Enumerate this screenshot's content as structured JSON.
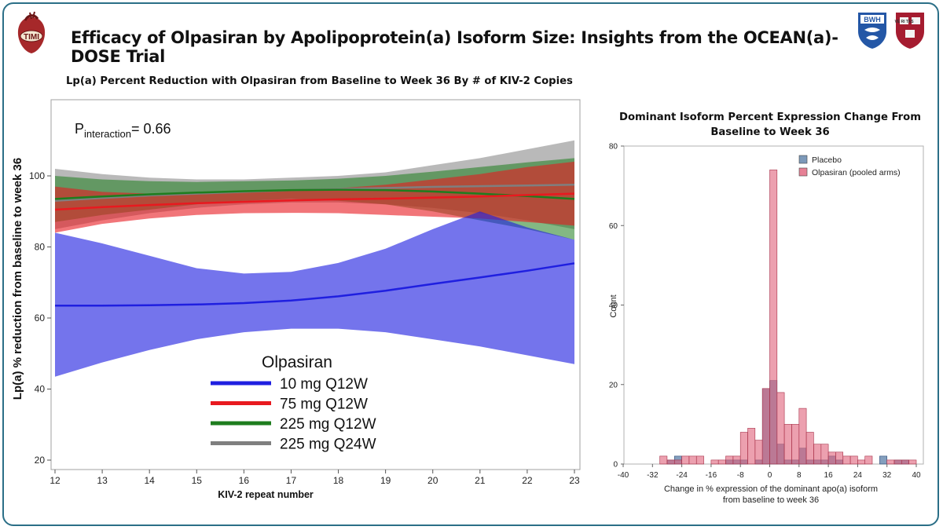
{
  "header": {
    "title": "Efficacy of Olpasiran by Apolipoprotein(a) Isoform Size: Insights from the OCEAN(a)-DOSE Trial",
    "logos": {
      "left": "TIMI",
      "right_1": "BWH",
      "right_2": "VE RI TAS"
    }
  },
  "colors": {
    "frame": "#2b6f87",
    "blue": "#1f1fe0",
    "red": "#e8191f",
    "green": "#1e7d1e",
    "gray": "#7f7f7f",
    "placebo": "#5b7fa8",
    "olpasiran": "#e0607a"
  },
  "chart_data": [
    {
      "type": "line",
      "title": "Lp(a) Percent Reduction with Olpasiran from Baseline to Week 36 By # of KIV-2 Copies",
      "xlabel": "KIV-2 repeat number",
      "ylabel": "Lp(a) % reduction from baseline to week 36",
      "xlim": [
        12,
        23
      ],
      "ylim": [
        18,
        118
      ],
      "xticks": [
        12,
        13,
        14,
        15,
        16,
        17,
        18,
        19,
        20,
        21,
        22,
        23
      ],
      "yticks": [
        20,
        40,
        60,
        80,
        100
      ],
      "annotation": {
        "prefix": "P",
        "subscript": "interaction",
        "suffix": "= 0.66"
      },
      "legend": {
        "title": "Olpasiran",
        "position": "bottom-center"
      },
      "x": [
        12,
        13,
        14,
        15,
        16,
        17,
        18,
        19,
        20,
        21,
        22,
        23
      ],
      "series": [
        {
          "name": "10 mg Q12W",
          "color": "#1f1fe0",
          "values": [
            63.5,
            63.5,
            63.6,
            63.8,
            64.2,
            64.9,
            66.1,
            67.7,
            69.6,
            71.4,
            73.3,
            75.4
          ],
          "lower": [
            43.5,
            47.5,
            51.0,
            54.0,
            56.0,
            57.0,
            57.0,
            56.0,
            54.0,
            52.0,
            49.5,
            47.0
          ],
          "upper": [
            84.0,
            81.0,
            77.5,
            74.0,
            72.5,
            73.0,
            75.5,
            79.5,
            85.0,
            90.0,
            85.5,
            82.0
          ]
        },
        {
          "name": "75 mg Q12W",
          "color": "#e8191f",
          "values": [
            90.5,
            91.2,
            91.8,
            92.3,
            92.7,
            93.1,
            93.4,
            93.6,
            93.9,
            94.2,
            94.6,
            95.0
          ],
          "lower": [
            84.0,
            86.5,
            88.0,
            89.0,
            89.5,
            89.6,
            89.5,
            89.0,
            88.5,
            88.0,
            87.0,
            86.0
          ],
          "upper": [
            97.0,
            95.5,
            95.0,
            95.0,
            95.5,
            96.0,
            96.5,
            97.5,
            99.0,
            100.5,
            102.5,
            104.0
          ]
        },
        {
          "name": "225 mg Q12W",
          "color": "#1e7d1e",
          "values": [
            93.5,
            94.2,
            94.8,
            95.3,
            95.7,
            96.0,
            96.1,
            96.0,
            95.6,
            95.0,
            94.3,
            93.5
          ],
          "lower": [
            87.0,
            89.0,
            90.5,
            92.0,
            93.0,
            93.5,
            93.0,
            92.0,
            90.0,
            87.5,
            85.0,
            82.0
          ],
          "upper": [
            100.0,
            99.0,
            98.5,
            98.3,
            98.5,
            98.7,
            99.2,
            100.0,
            101.2,
            102.5,
            103.8,
            105.0
          ]
        },
        {
          "name": "225 mg Q24W",
          "color": "#7f7f7f",
          "values": [
            93.0,
            93.8,
            94.5,
            95.0,
            95.5,
            96.0,
            96.3,
            96.6,
            96.9,
            97.1,
            97.3,
            97.5
          ],
          "lower": [
            85.0,
            87.5,
            89.5,
            91.0,
            92.0,
            92.5,
            92.5,
            92.0,
            91.0,
            89.5,
            87.5,
            85.0
          ],
          "upper": [
            102.0,
            100.5,
            99.5,
            99.0,
            99.0,
            99.5,
            100.0,
            101.0,
            103.0,
            105.0,
            107.5,
            110.0
          ]
        }
      ]
    },
    {
      "type": "bar",
      "subtype": "histogram",
      "title": "Dominant Isoform Percent Expression Change From Baseline to Week 36",
      "xlabel": "Change in % expression of the dominant apo(a) isoform from baseline to week 36",
      "ylabel": "Count",
      "xlim": [
        -40,
        41
      ],
      "ylim": [
        0,
        80
      ],
      "xticks": [
        -40,
        -32,
        -24,
        -16,
        -8,
        0,
        8,
        16,
        24,
        32,
        40
      ],
      "yticks": [
        0,
        20,
        40,
        60,
        80
      ],
      "bin_width": 2,
      "bin_starts": [
        -30,
        -28,
        -26,
        -24,
        -22,
        -20,
        -18,
        -16,
        -14,
        -12,
        -10,
        -8,
        -6,
        -4,
        -2,
        0,
        2,
        4,
        6,
        8,
        10,
        12,
        14,
        16,
        18,
        20,
        22,
        24,
        26,
        28,
        30,
        32,
        34,
        36,
        38
      ],
      "legend": {
        "position": "top-right"
      },
      "series": [
        {
          "name": "Placebo",
          "color": "#5b7fa8",
          "values": [
            0,
            1,
            2,
            0,
            0,
            0,
            0,
            0,
            0,
            1,
            1,
            1,
            0,
            1,
            19,
            21,
            5,
            1,
            1,
            4,
            1,
            1,
            1,
            2,
            1,
            0,
            0,
            0,
            0,
            0,
            2,
            0,
            1,
            1,
            0
          ]
        },
        {
          "name": "Olpasiran (pooled arms)",
          "color": "#e0607a",
          "values": [
            2,
            1,
            1,
            2,
            2,
            2,
            0,
            1,
            1,
            2,
            2,
            8,
            9,
            6,
            19,
            74,
            18,
            10,
            10,
            14,
            8,
            5,
            5,
            3,
            3,
            2,
            2,
            1,
            2,
            0,
            0,
            1,
            1,
            1,
            1
          ]
        }
      ]
    }
  ]
}
